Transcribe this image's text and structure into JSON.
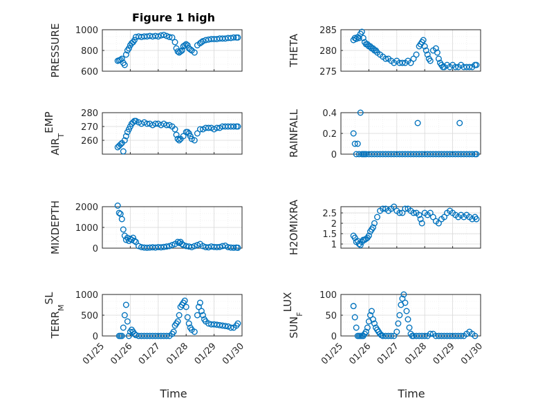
{
  "figure": {
    "title": "Figure 1 high",
    "marker_color": "#0072BD",
    "x_axis_label": "Time",
    "x_ticks": [
      "01/25",
      "01/26",
      "01/27",
      "01/28",
      "01/29",
      "01/30"
    ]
  },
  "chart_data": [
    {
      "type": "scatter",
      "id": "pressure",
      "ylabel": "PRESSURE",
      "xlim": [
        0,
        5
      ],
      "ylim": [
        600,
        1000
      ],
      "yticks": [
        600,
        800,
        1000
      ],
      "series": [
        {
          "x": [
            0.55,
            0.6,
            0.65,
            0.7,
            0.75,
            0.8,
            0.85,
            0.9,
            0.95,
            1.0,
            1.05,
            1.1,
            1.15,
            1.2,
            1.3,
            1.4,
            1.5,
            1.6,
            1.7,
            1.8,
            1.9,
            2.0,
            2.1,
            2.2,
            2.3,
            2.4,
            2.5,
            2.6,
            2.65,
            2.7,
            2.75,
            2.8,
            2.85,
            2.9,
            2.95,
            3.0,
            3.05,
            3.1,
            3.15,
            3.2,
            3.3,
            3.4,
            3.5,
            3.55,
            3.6,
            3.7,
            3.8,
            3.9,
            4.0,
            4.1,
            4.2,
            4.3,
            4.4,
            4.5,
            4.6,
            4.7,
            4.8,
            4.85
          ],
          "y": [
            700,
            705,
            710,
            720,
            680,
            660,
            760,
            800,
            820,
            850,
            870,
            880,
            900,
            930,
            935,
            930,
            935,
            935,
            940,
            935,
            940,
            935,
            945,
            950,
            940,
            930,
            925,
            880,
            820,
            790,
            780,
            790,
            800,
            840,
            850,
            860,
            850,
            820,
            810,
            800,
            780,
            850,
            870,
            880,
            890,
            900,
            905,
            910,
            910,
            910,
            915,
            915,
            915,
            920,
            920,
            925,
            925,
            925
          ]
        }
      ]
    },
    {
      "type": "scatter",
      "id": "theta",
      "ylabel": "THETA",
      "xlim": [
        0,
        5
      ],
      "ylim": [
        275,
        285
      ],
      "yticks": [
        275,
        280,
        285
      ],
      "series": [
        {
          "x": [
            0.45,
            0.5,
            0.55,
            0.6,
            0.65,
            0.7,
            0.75,
            0.8,
            0.85,
            0.9,
            0.95,
            1.0,
            1.05,
            1.1,
            1.15,
            1.2,
            1.25,
            1.3,
            1.4,
            1.5,
            1.6,
            1.7,
            1.8,
            1.9,
            2.0,
            2.1,
            2.2,
            2.3,
            2.4,
            2.5,
            2.6,
            2.7,
            2.8,
            2.85,
            2.9,
            2.95,
            3.0,
            3.05,
            3.1,
            3.15,
            3.2,
            3.3,
            3.4,
            3.45,
            3.5,
            3.55,
            3.6,
            3.65,
            3.7,
            3.8,
            3.9,
            4.0,
            4.1,
            4.2,
            4.3,
            4.4,
            4.5,
            4.6,
            4.7,
            4.8,
            4.85
          ],
          "y": [
            282.5,
            283,
            282.8,
            283.2,
            283,
            284,
            284.5,
            283,
            282,
            281.5,
            281.5,
            281,
            281,
            280.5,
            280.5,
            280,
            280,
            279.5,
            279,
            278.5,
            278,
            278,
            277.5,
            277,
            277.5,
            277,
            277,
            277,
            277.5,
            277,
            278,
            279,
            281,
            281.5,
            282,
            282.5,
            281,
            280,
            279,
            278,
            277.5,
            280,
            280.5,
            279.5,
            278,
            277,
            276.5,
            276,
            276,
            276.5,
            276,
            276.5,
            276,
            276,
            276.5,
            276,
            276,
            276,
            276,
            276.5,
            276.5
          ]
        }
      ]
    },
    {
      "type": "scatter",
      "id": "air_temp",
      "ylabel": "AIR_TEMP",
      "xlim": [
        0,
        5
      ],
      "ylim": [
        250,
        280
      ],
      "yticks": [
        260,
        270,
        280
      ],
      "series": [
        {
          "x": [
            0.55,
            0.6,
            0.65,
            0.7,
            0.75,
            0.8,
            0.85,
            0.9,
            0.95,
            1.0,
            1.05,
            1.1,
            1.15,
            1.2,
            1.3,
            1.4,
            1.5,
            1.6,
            1.7,
            1.8,
            1.9,
            2.0,
            2.1,
            2.2,
            2.3,
            2.4,
            2.5,
            2.6,
            2.65,
            2.7,
            2.75,
            2.8,
            2.9,
            3.0,
            3.05,
            3.1,
            3.15,
            3.2,
            3.3,
            3.4,
            3.5,
            3.6,
            3.7,
            3.8,
            3.9,
            4.0,
            4.1,
            4.2,
            4.3,
            4.4,
            4.5,
            4.6,
            4.7,
            4.8,
            4.85
          ],
          "y": [
            255,
            256,
            257,
            258,
            252,
            260,
            263,
            266,
            268,
            270,
            272,
            273,
            274,
            274,
            273,
            272,
            273,
            272,
            272,
            271,
            272,
            272,
            271,
            272,
            271,
            271,
            270,
            268,
            264,
            261,
            260,
            261,
            263,
            266,
            266,
            265,
            263,
            261,
            260,
            265,
            268,
            268,
            269,
            269,
            269,
            268,
            269,
            269,
            270,
            270,
            270,
            270,
            270,
            270,
            270
          ]
        }
      ]
    },
    {
      "type": "scatter",
      "id": "rainfall",
      "ylabel": "RAINFALL",
      "xlim": [
        0,
        5
      ],
      "ylim": [
        0,
        0.4
      ],
      "yticks": [
        0,
        0.2,
        0.4
      ],
      "series": [
        {
          "x": [
            0.45,
            0.5,
            0.55,
            0.6,
            0.65,
            0.7,
            0.75,
            0.8,
            0.85,
            0.9,
            1.0,
            1.1,
            1.2,
            1.3,
            1.4,
            1.5,
            1.6,
            1.7,
            1.8,
            1.9,
            2.0,
            2.1,
            2.2,
            2.3,
            2.4,
            2.5,
            2.6,
            2.7,
            2.8,
            2.9,
            3.0,
            3.1,
            3.2,
            3.3,
            3.4,
            3.5,
            3.6,
            3.7,
            3.8,
            3.9,
            4.0,
            4.1,
            4.2,
            4.3,
            4.4,
            4.5,
            4.6,
            4.7,
            4.8,
            4.85,
            2.75,
            4.25
          ],
          "y": [
            0.2,
            0.1,
            0,
            0.1,
            0,
            0.4,
            0,
            0,
            0,
            0,
            0,
            0,
            0,
            0,
            0,
            0,
            0,
            0,
            0,
            0,
            0,
            0,
            0,
            0,
            0,
            0,
            0,
            0,
            0,
            0,
            0,
            0,
            0,
            0,
            0,
            0,
            0,
            0,
            0,
            0,
            0,
            0,
            0,
            0,
            0,
            0,
            0,
            0,
            0,
            0,
            0.3,
            0.3
          ]
        }
      ]
    },
    {
      "type": "scatter",
      "id": "mixdepth",
      "ylabel": "MIXDEPTH",
      "xlim": [
        0,
        5
      ],
      "ylim": [
        0,
        2000
      ],
      "yticks": [
        0,
        1000,
        2000
      ],
      "series": [
        {
          "x": [
            0.55,
            0.6,
            0.65,
            0.7,
            0.75,
            0.8,
            0.85,
            0.9,
            0.95,
            1.0,
            1.05,
            1.1,
            1.15,
            1.2,
            1.3,
            1.4,
            1.5,
            1.6,
            1.7,
            1.8,
            1.9,
            2.0,
            2.1,
            2.2,
            2.3,
            2.4,
            2.5,
            2.6,
            2.7,
            2.75,
            2.8,
            2.85,
            2.9,
            3.0,
            3.1,
            3.2,
            3.3,
            3.4,
            3.5,
            3.6,
            3.7,
            3.8,
            3.9,
            4.0,
            4.1,
            4.2,
            4.3,
            4.4,
            4.5,
            4.6,
            4.7,
            4.8,
            4.85
          ],
          "y": [
            2050,
            1700,
            1650,
            1400,
            900,
            600,
            400,
            500,
            350,
            450,
            400,
            500,
            350,
            300,
            100,
            50,
            30,
            20,
            30,
            40,
            30,
            50,
            40,
            60,
            80,
            100,
            150,
            200,
            300,
            250,
            300,
            200,
            150,
            100,
            80,
            50,
            100,
            150,
            200,
            100,
            50,
            40,
            80,
            60,
            50,
            60,
            100,
            120,
            50,
            30,
            20,
            30,
            20
          ]
        }
      ]
    },
    {
      "type": "scatter",
      "id": "h2omixra",
      "ylabel": "H2OMIXRA",
      "xlim": [
        0,
        5
      ],
      "ylim": [
        0.8,
        2.8
      ],
      "yticks": [
        1,
        1.5,
        2,
        2.5
      ],
      "series": [
        {
          "x": [
            0.45,
            0.5,
            0.55,
            0.6,
            0.65,
            0.7,
            0.75,
            0.8,
            0.85,
            0.9,
            0.95,
            1.0,
            1.05,
            1.1,
            1.15,
            1.2,
            1.3,
            1.4,
            1.5,
            1.6,
            1.7,
            1.8,
            1.9,
            2.0,
            2.1,
            2.2,
            2.3,
            2.4,
            2.5,
            2.6,
            2.7,
            2.8,
            2.85,
            2.9,
            3.0,
            3.1,
            3.2,
            3.3,
            3.4,
            3.5,
            3.6,
            3.7,
            3.8,
            3.9,
            4.0,
            4.1,
            4.2,
            4.3,
            4.4,
            4.5,
            4.6,
            4.7,
            4.8,
            4.85
          ],
          "y": [
            1.4,
            1.3,
            1.1,
            1.15,
            1.0,
            0.95,
            1.1,
            1.2,
            1.2,
            1.25,
            1.3,
            1.4,
            1.6,
            1.7,
            1.8,
            2.0,
            2.3,
            2.6,
            2.7,
            2.7,
            2.6,
            2.7,
            2.8,
            2.6,
            2.5,
            2.5,
            2.7,
            2.7,
            2.6,
            2.5,
            2.5,
            2.4,
            2.2,
            2.0,
            2.5,
            2.4,
            2.5,
            2.3,
            2.1,
            2.0,
            2.2,
            2.3,
            2.5,
            2.6,
            2.5,
            2.4,
            2.3,
            2.4,
            2.3,
            2.4,
            2.3,
            2.2,
            2.3,
            2.2
          ]
        }
      ]
    },
    {
      "type": "scatter",
      "id": "terr_msl",
      "ylabel": "TERR_MSL",
      "xlim": [
        0,
        5
      ],
      "ylim": [
        0,
        1000
      ],
      "yticks": [
        0,
        500,
        1000
      ],
      "series": [
        {
          "x": [
            0.6,
            0.65,
            0.7,
            0.75,
            0.8,
            0.85,
            0.9,
            0.95,
            1.0,
            1.05,
            1.1,
            1.15,
            1.2,
            1.3,
            1.4,
            1.5,
            1.6,
            1.7,
            1.8,
            1.9,
            2.0,
            2.1,
            2.2,
            2.3,
            2.4,
            2.5,
            2.55,
            2.6,
            2.65,
            2.7,
            2.75,
            2.8,
            2.85,
            2.9,
            2.95,
            3.0,
            3.05,
            3.1,
            3.15,
            3.2,
            3.3,
            3.4,
            3.45,
            3.5,
            3.55,
            3.6,
            3.65,
            3.7,
            3.8,
            3.9,
            4.0,
            4.1,
            4.2,
            4.3,
            4.4,
            4.5,
            4.6,
            4.7,
            4.8,
            4.85
          ],
          "y": [
            0,
            0,
            0,
            200,
            500,
            750,
            350,
            0,
            100,
            150,
            100,
            50,
            20,
            0,
            0,
            0,
            0,
            0,
            0,
            0,
            0,
            0,
            0,
            0,
            0,
            50,
            100,
            250,
            300,
            350,
            500,
            700,
            750,
            800,
            850,
            700,
            450,
            300,
            200,
            150,
            100,
            500,
            700,
            800,
            600,
            500,
            400,
            350,
            300,
            280,
            280,
            270,
            260,
            250,
            240,
            230,
            200,
            200,
            250,
            300
          ]
        }
      ]
    },
    {
      "type": "scatter",
      "id": "sun_flux",
      "ylabel": "SUN_FLUX",
      "xlim": [
        0,
        5
      ],
      "ylim": [
        0,
        100
      ],
      "yticks": [
        0,
        50,
        100
      ],
      "series": [
        {
          "x": [
            0.45,
            0.5,
            0.55,
            0.6,
            0.65,
            0.7,
            0.75,
            0.8,
            0.85,
            0.9,
            0.95,
            1.0,
            1.05,
            1.1,
            1.15,
            1.2,
            1.25,
            1.3,
            1.35,
            1.4,
            1.45,
            1.5,
            1.6,
            1.7,
            1.8,
            1.9,
            2.0,
            2.05,
            2.1,
            2.15,
            2.2,
            2.25,
            2.3,
            2.35,
            2.4,
            2.45,
            2.5,
            2.55,
            2.6,
            2.7,
            2.8,
            2.9,
            3.0,
            3.1,
            3.2,
            3.3,
            3.4,
            3.5,
            3.6,
            3.7,
            3.8,
            3.9,
            4.0,
            4.1,
            4.2,
            4.3,
            4.4,
            4.5,
            4.6,
            4.7,
            4.8
          ],
          "y": [
            72,
            45,
            20,
            0,
            0,
            0,
            0,
            0,
            5,
            10,
            20,
            35,
            50,
            60,
            40,
            30,
            20,
            15,
            10,
            5,
            2,
            0,
            0,
            0,
            0,
            0,
            10,
            30,
            50,
            75,
            90,
            100,
            80,
            60,
            40,
            20,
            5,
            0,
            0,
            0,
            0,
            0,
            0,
            0,
            5,
            5,
            0,
            0,
            0,
            0,
            0,
            0,
            0,
            0,
            0,
            0,
            0,
            5,
            10,
            5,
            0
          ]
        }
      ]
    }
  ]
}
